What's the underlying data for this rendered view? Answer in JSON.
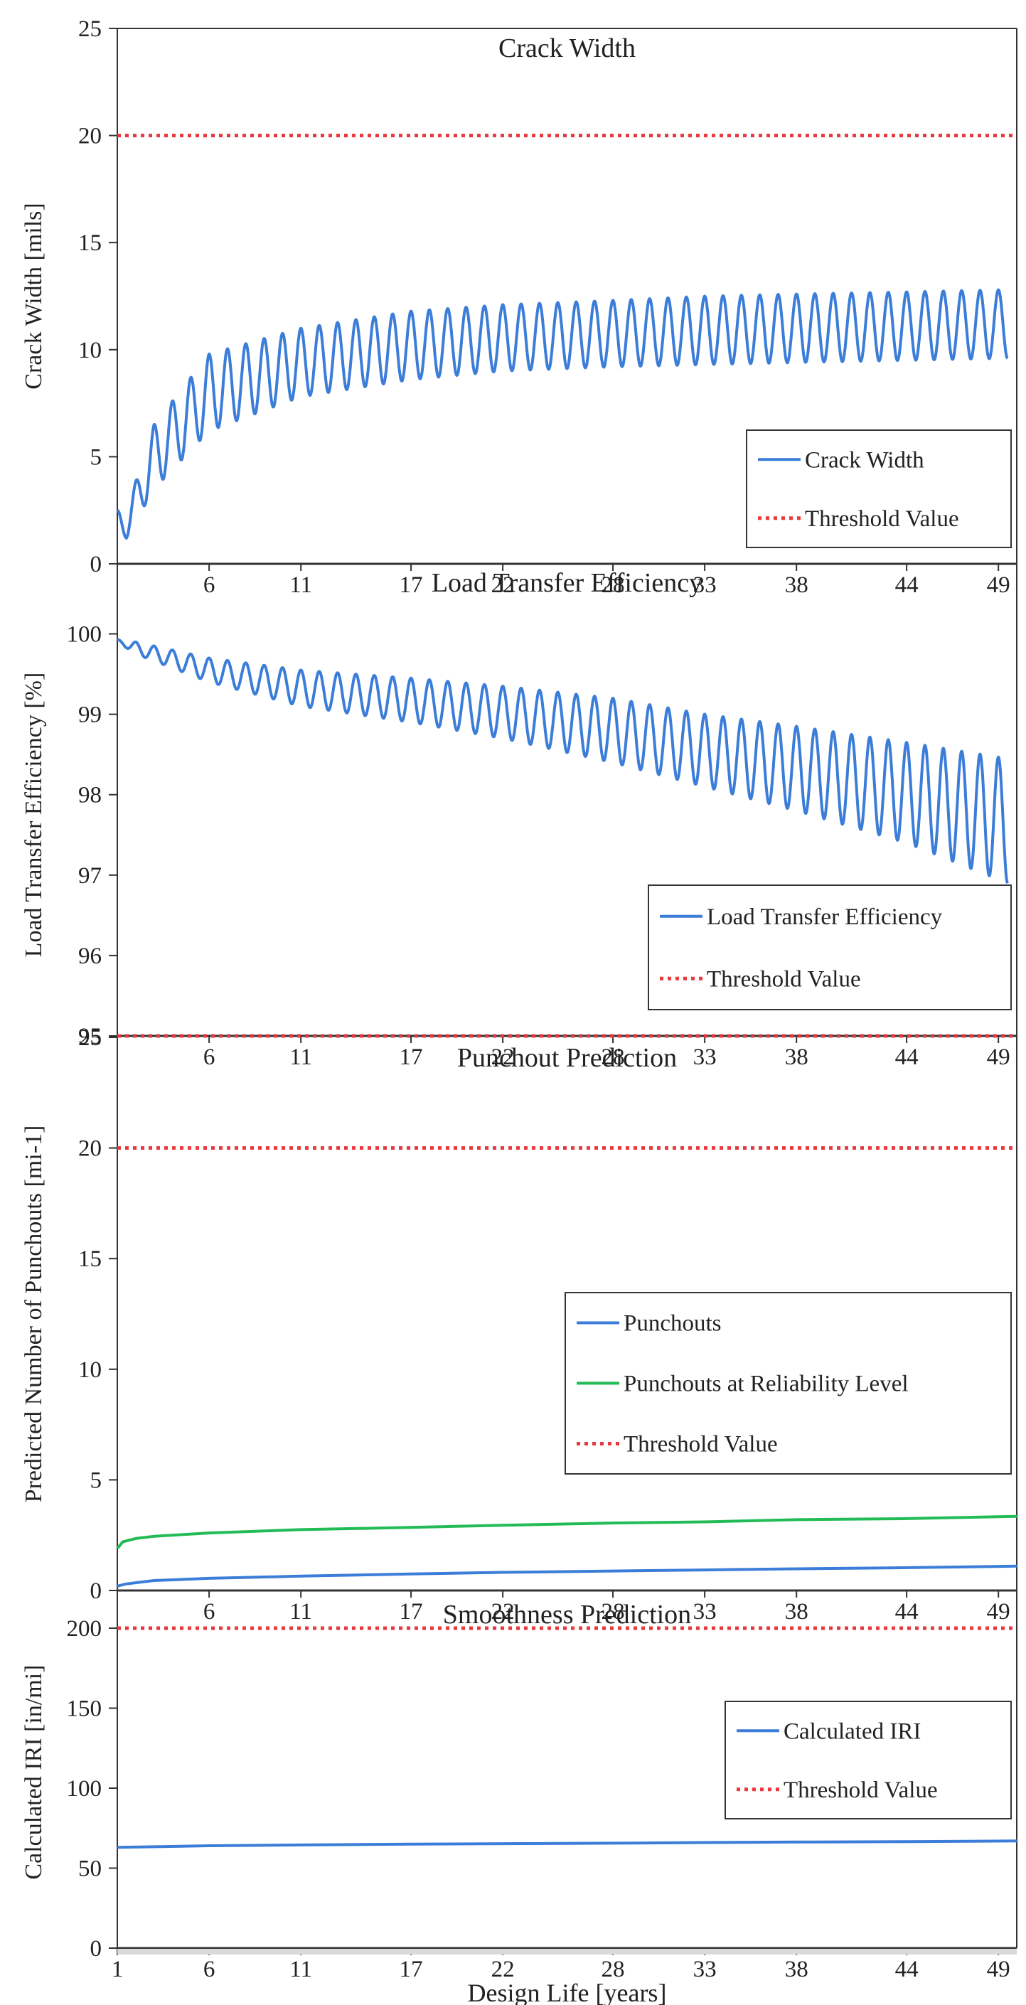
{
  "chart_data": [
    {
      "type": "line",
      "title": "Crack Width",
      "xlabel": "",
      "ylabel": "Crack Width [mils]",
      "xlim": [
        1,
        50
      ],
      "ylim": [
        0,
        25
      ],
      "yticks": [
        "0",
        "5",
        "10",
        "15",
        "20",
        "25"
      ],
      "xticks": [
        "6",
        "11",
        "17",
        "22",
        "28",
        "33",
        "38",
        "44",
        "49"
      ],
      "grid": false,
      "legend_position": "bottom-right",
      "series": [
        {
          "name": "Crack Width",
          "color": "#3b7dd8",
          "style": "solid",
          "pattern": "seasonal",
          "envelope_x": [
            1,
            1.5,
            3,
            6,
            11,
            17,
            22,
            28,
            33,
            38,
            44,
            49.5
          ],
          "envelope_low": [
            1.2,
            1.2,
            3.5,
            6.2,
            7.8,
            8.6,
            9.0,
            9.2,
            9.3,
            9.4,
            9.5,
            9.6
          ],
          "envelope_high": [
            2.5,
            2.5,
            6.5,
            9.8,
            11.0,
            11.8,
            12.1,
            12.3,
            12.5,
            12.6,
            12.7,
            12.8
          ]
        },
        {
          "name": "Threshold Value",
          "color": "#e8383d",
          "style": "dotted",
          "x": [
            1,
            50
          ],
          "values": [
            20,
            20
          ]
        }
      ]
    },
    {
      "type": "line",
      "title": "Load Transfer Efficiency",
      "xlabel": "",
      "ylabel": "Load Transfer Efficiency  [%]",
      "xlim": [
        1,
        50
      ],
      "ylim": [
        95,
        100.5
      ],
      "yticks": [
        "95",
        "96",
        "97",
        "98",
        "99",
        "100"
      ],
      "xticks": [
        "6",
        "11",
        "17",
        "22",
        "28",
        "33",
        "38",
        "44",
        "49"
      ],
      "grid": false,
      "legend_position": "bottom-right",
      "series": [
        {
          "name": "Load Transfer Efficiency",
          "color": "#3b7dd8",
          "style": "solid",
          "pattern": "seasonal",
          "envelope_x": [
            1,
            2,
            6,
            11,
            17,
            22,
            28,
            33,
            38,
            44,
            49.5
          ],
          "envelope_low": [
            99.9,
            99.75,
            99.4,
            99.1,
            98.9,
            98.7,
            98.4,
            98.1,
            97.8,
            97.4,
            96.9
          ],
          "envelope_high": [
            99.93,
            99.9,
            99.7,
            99.55,
            99.45,
            99.35,
            99.2,
            99.0,
            98.85,
            98.65,
            98.45
          ]
        },
        {
          "name": "Threshold Value",
          "color": "#e8383d",
          "style": "dotted",
          "x": [
            1,
            50
          ],
          "values": [
            95,
            95
          ]
        }
      ]
    },
    {
      "type": "line",
      "title": "Punchout Prediction",
      "xlabel": "",
      "ylabel": "Predicted Number of Punchouts [mi-1]",
      "xlim": [
        1,
        50
      ],
      "ylim": [
        0,
        25
      ],
      "yticks": [
        "0",
        "5",
        "10",
        "15",
        "20",
        "25"
      ],
      "xticks": [
        "6",
        "11",
        "17",
        "22",
        "28",
        "33",
        "38",
        "44",
        "49"
      ],
      "grid": false,
      "legend_position": "right",
      "series": [
        {
          "name": "Punchouts",
          "color": "#3b7dd8",
          "style": "solid",
          "x": [
            1,
            1.5,
            3,
            6,
            11,
            17,
            22,
            28,
            33,
            38,
            44,
            50
          ],
          "values": [
            0.2,
            0.3,
            0.45,
            0.55,
            0.65,
            0.75,
            0.82,
            0.88,
            0.93,
            0.98,
            1.03,
            1.1
          ]
        },
        {
          "name": "Punchouts at Reliability Level",
          "color": "#22bb55",
          "style": "solid",
          "x": [
            1,
            1.3,
            2,
            3,
            6,
            11,
            17,
            22,
            28,
            33,
            38,
            44,
            50
          ],
          "values": [
            1.9,
            2.2,
            2.35,
            2.45,
            2.6,
            2.75,
            2.85,
            2.95,
            3.05,
            3.1,
            3.2,
            3.25,
            3.35
          ]
        },
        {
          "name": "Threshold Value",
          "color": "#e8383d",
          "style": "dotted",
          "x": [
            1,
            50
          ],
          "values": [
            20,
            20
          ]
        }
      ]
    },
    {
      "type": "line",
      "title": "Smoothness Prediction",
      "xlabel": "Design Life [years]",
      "ylabel": "Calculated IRI [in/mi]",
      "xlim": [
        1,
        50
      ],
      "ylim": [
        0,
        220
      ],
      "yticks": [
        "0",
        "50",
        "100",
        "150",
        "200"
      ],
      "xticks": [
        "1",
        "6",
        "11",
        "17",
        "22",
        "28",
        "33",
        "38",
        "44",
        "49"
      ],
      "grid": false,
      "legend_position": "top-right",
      "series": [
        {
          "name": "Calculated IRI",
          "color": "#3b7dd8",
          "style": "solid",
          "x": [
            1,
            6,
            11,
            17,
            22,
            28,
            33,
            38,
            44,
            50
          ],
          "values": [
            63,
            64,
            64.5,
            65,
            65.3,
            65.6,
            66,
            66.3,
            66.6,
            67
          ]
        },
        {
          "name": "Threshold Value",
          "color": "#e8383d",
          "style": "dotted",
          "x": [
            1,
            50
          ],
          "values": [
            200,
            200
          ]
        }
      ]
    }
  ]
}
